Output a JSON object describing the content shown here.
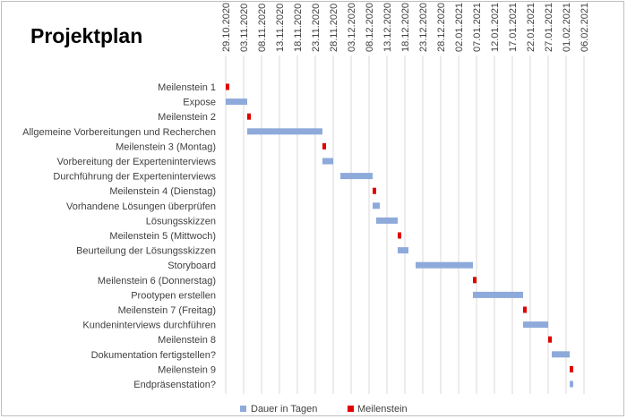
{
  "chart_data": {
    "type": "gantt",
    "title": "Projektplan",
    "x_axis": {
      "tick_labels": [
        "29.10.2020",
        "03.11.2020",
        "08.11.2020",
        "13.11.2020",
        "18.11.2020",
        "23.11.2020",
        "28.11.2020",
        "03.12.2020",
        "08.12.2020",
        "13.12.2020",
        "18.12.2020",
        "23.12.2020",
        "28.12.2020",
        "02.01.2021",
        "07.01.2021",
        "12.01.2021",
        "17.01.2021",
        "22.01.2021",
        "27.01.2021",
        "01.02.2021",
        "06.02.2021"
      ],
      "range": [
        "29.10.2020",
        "06.02.2021"
      ],
      "tick_interval_days": 5,
      "gridlines": true
    },
    "legend": {
      "position": "bottom",
      "entries": [
        {
          "name": "Dauer in Tagen",
          "color": "#8eaadb"
        },
        {
          "name": "Meilenstein",
          "color": "#e00000"
        }
      ]
    },
    "tasks": [
      {
        "label": "Meilenstein 1",
        "kind": "milestone",
        "start": "29.10.2020",
        "duration_days": 0
      },
      {
        "label": "Expose",
        "kind": "task",
        "start": "29.10.2020",
        "duration_days": 6
      },
      {
        "label": "Meilenstein 2",
        "kind": "milestone",
        "start": "04.11.2020",
        "duration_days": 0
      },
      {
        "label": "Allgemeine Vorbereitungen und Recherchen",
        "kind": "task",
        "start": "04.11.2020",
        "duration_days": 21
      },
      {
        "label": "Meilenstein 3 (Montag)",
        "kind": "milestone",
        "start": "25.11.2020",
        "duration_days": 0
      },
      {
        "label": "Vorbereitung der Experteninterviews",
        "kind": "task",
        "start": "25.11.2020",
        "duration_days": 3
      },
      {
        "label": "Durchführung der Experteninterviews",
        "kind": "task",
        "start": "30.11.2020",
        "duration_days": 9
      },
      {
        "label": "Meilenstein 4 (Dienstag)",
        "kind": "milestone",
        "start": "09.12.2020",
        "duration_days": 0
      },
      {
        "label": "Vorhandene Lösungen überprüfen",
        "kind": "task",
        "start": "09.12.2020",
        "duration_days": 2
      },
      {
        "label": "Lösungsskizzen",
        "kind": "task",
        "start": "10.12.2020",
        "duration_days": 6
      },
      {
        "label": "Meilenstein 5 (Mittwoch)",
        "kind": "milestone",
        "start": "16.12.2020",
        "duration_days": 0
      },
      {
        "label": "Beurteilung der Lösungsskizzen",
        "kind": "task",
        "start": "16.12.2020",
        "duration_days": 3
      },
      {
        "label": "Storyboard",
        "kind": "task",
        "start": "21.12.2020",
        "duration_days": 16
      },
      {
        "label": "Meilenstein 6 (Donnerstag)",
        "kind": "milestone",
        "start": "06.01.2021",
        "duration_days": 0
      },
      {
        "label": "Prootypen erstellen",
        "kind": "task",
        "start": "06.01.2021",
        "duration_days": 14
      },
      {
        "label": "Meilenstein 7 (Freitag)",
        "kind": "milestone",
        "start": "20.01.2021",
        "duration_days": 0
      },
      {
        "label": "Kundeninterviews durchführen",
        "kind": "task",
        "start": "20.01.2021",
        "duration_days": 7
      },
      {
        "label": "Meilenstein 8",
        "kind": "milestone",
        "start": "27.01.2021",
        "duration_days": 0
      },
      {
        "label": "Dokumentation fertigstellen?",
        "kind": "task",
        "start": "28.01.2021",
        "duration_days": 5
      },
      {
        "label": "Meilenstein 9",
        "kind": "milestone",
        "start": "02.02.2021",
        "duration_days": 0
      },
      {
        "label": "Endpräsenstation?",
        "kind": "task",
        "start": "02.02.2021",
        "duration_days": 1
      }
    ]
  },
  "colors": {
    "bar": "#8eaadb",
    "milestone": "#e00000",
    "gridline": "#d9d9d9",
    "text": "#404040"
  }
}
